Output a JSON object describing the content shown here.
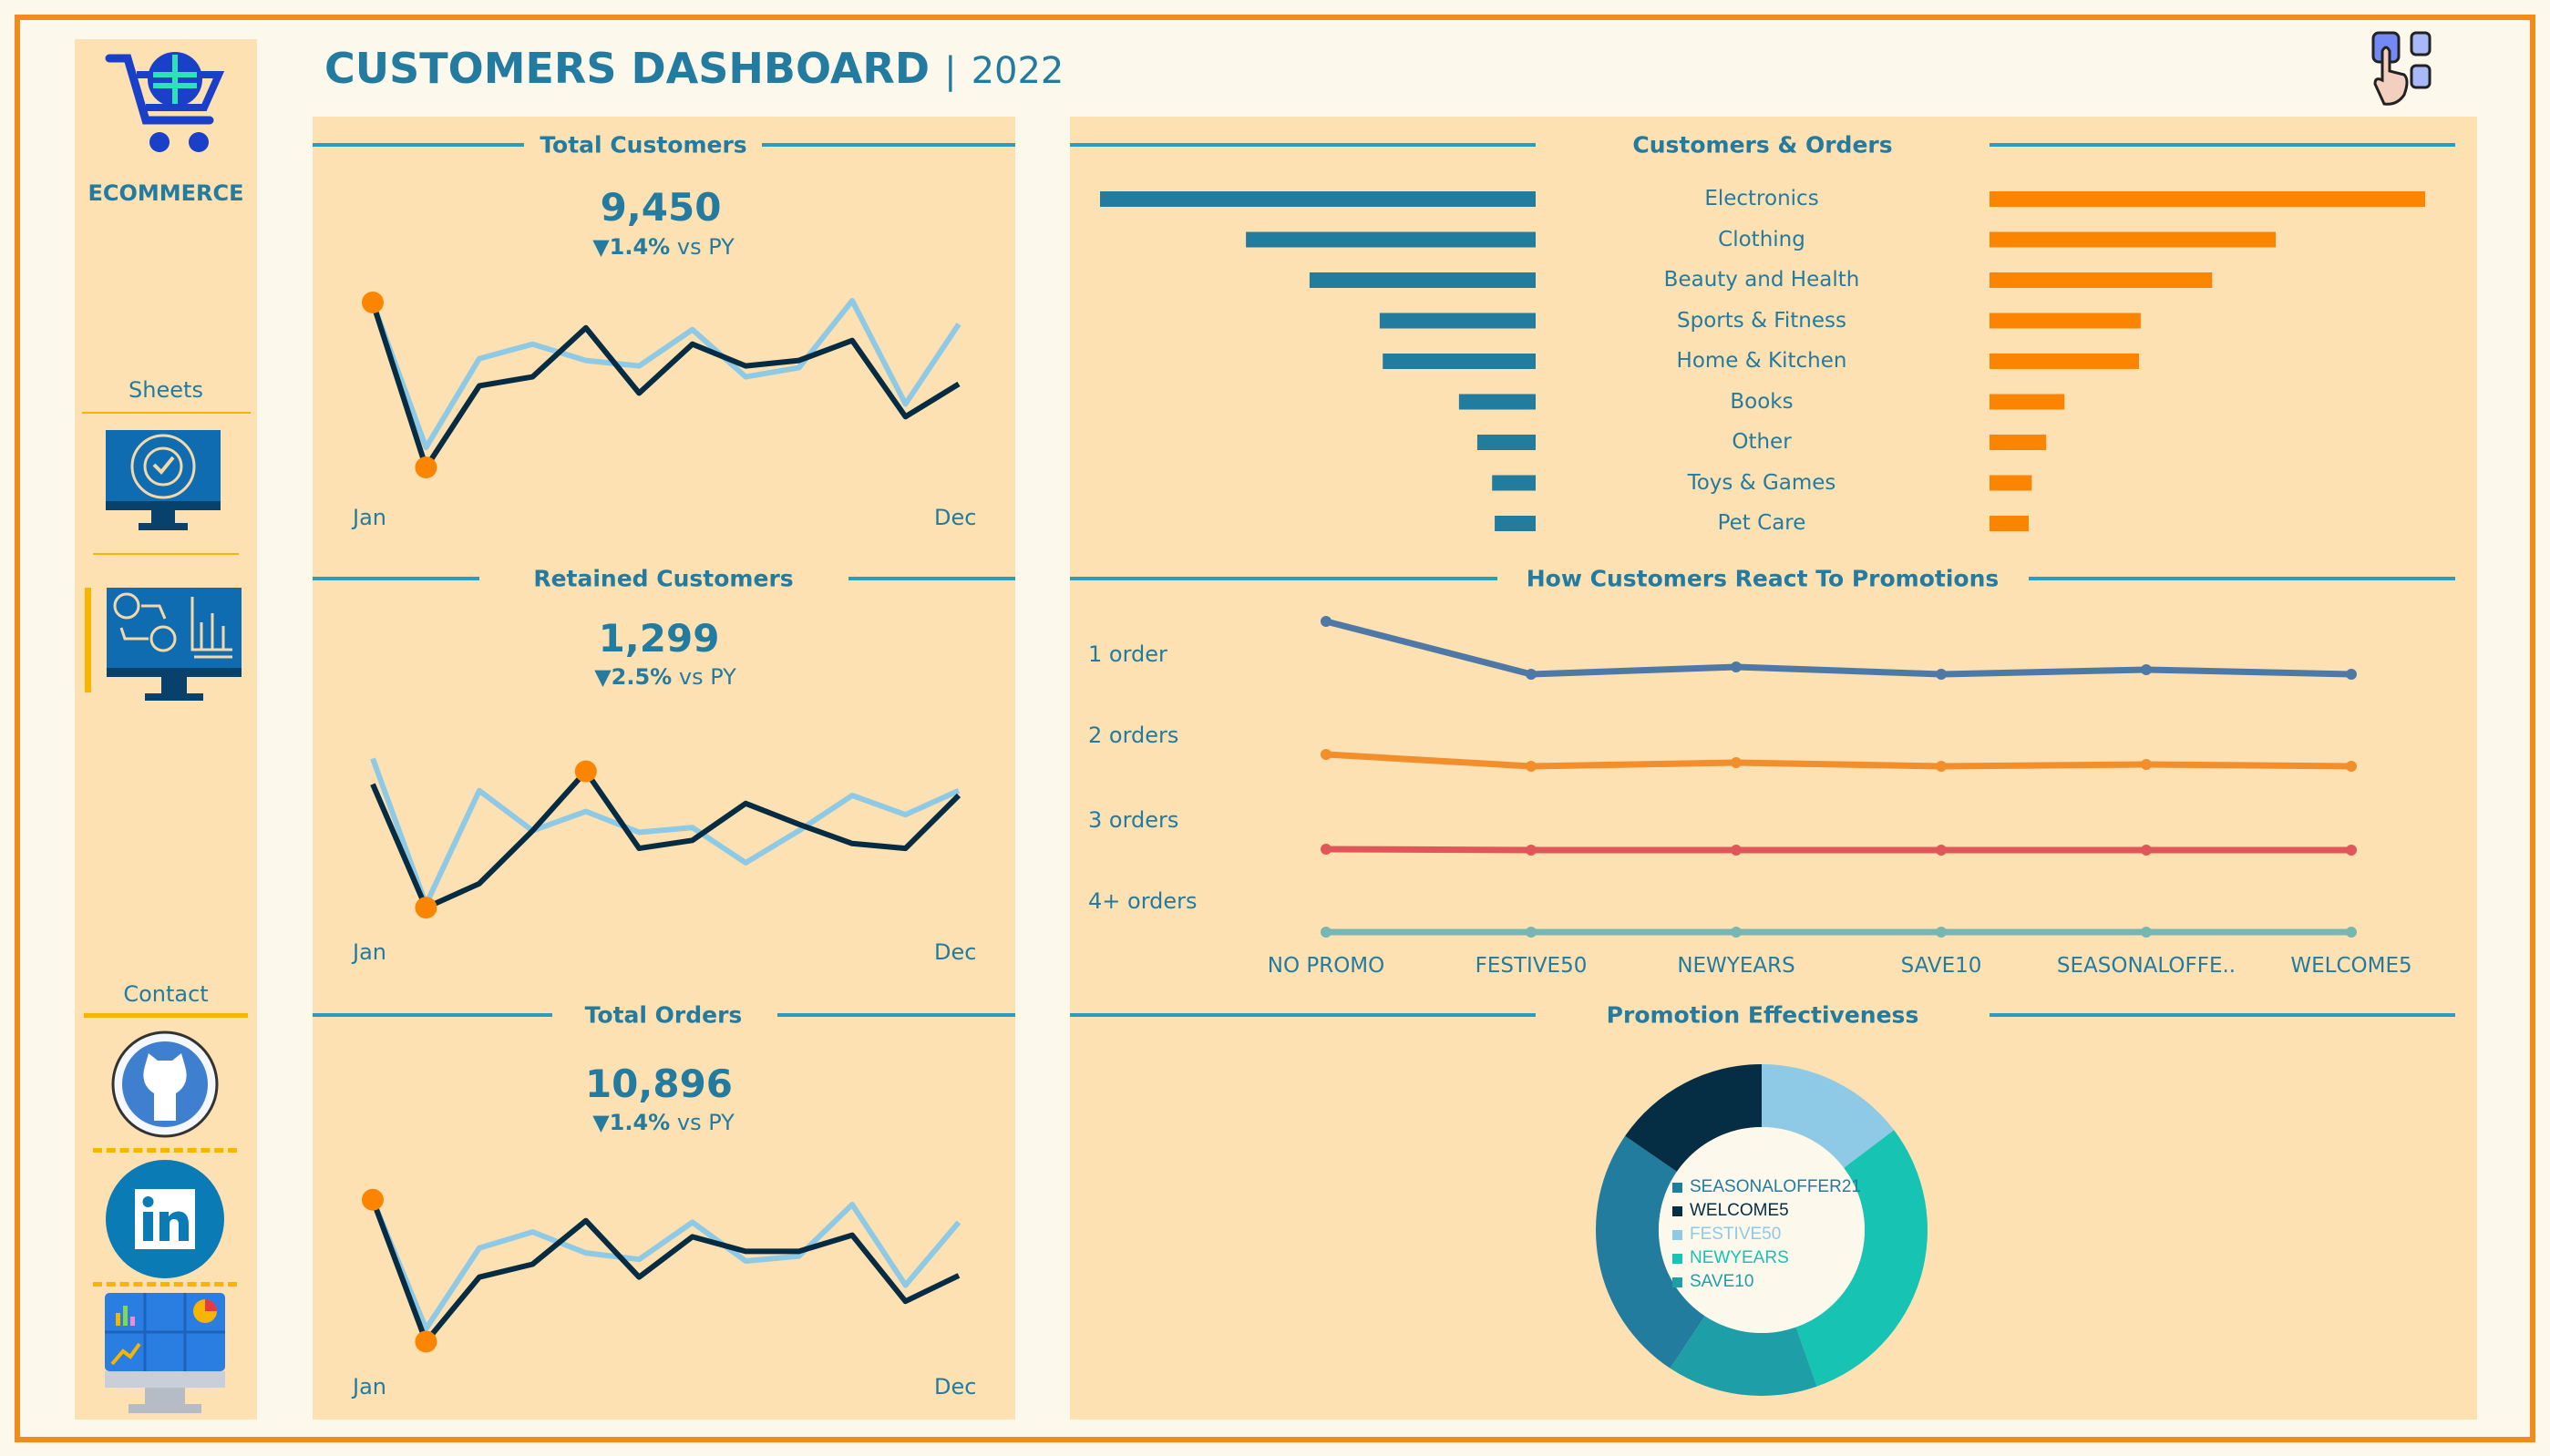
{
  "header": {
    "title": "CUSTOMERS DASHBOARD",
    "separator": "|",
    "year": "2022",
    "icon": "touch-select-icon"
  },
  "sidebar": {
    "brand": "ECOMMERCE",
    "brand_icon": "globe-cart-icon",
    "sheets_label": "Sheets",
    "sheets": [
      {
        "icon": "kpi-monitor-icon",
        "active": false
      },
      {
        "icon": "customer-analysis-monitor-icon",
        "active": true
      }
    ],
    "contact_label": "Contact",
    "contacts": [
      {
        "icon": "github-icon"
      },
      {
        "icon": "linkedin-icon"
      },
      {
        "icon": "dashboard-portfolio-icon"
      }
    ]
  },
  "colors": {
    "accent": "#237ba0",
    "line": "#2a9dbf",
    "current": "#062c43",
    "previous": "#8ecae6",
    "highlight": "#fb8500",
    "bar_customers": "#227c9d",
    "bar_orders": "#fb8500",
    "frame": "#f28a1c",
    "panel": "#fde1b2"
  },
  "kpis": [
    {
      "title": "Total Customers",
      "value": "9,450",
      "arrow": "▼",
      "delta": "1.4%",
      "vs": "vs PY",
      "start_label": "Jan",
      "end_label": "Dec",
      "current": [
        94,
        3,
        48,
        53,
        80,
        44,
        71,
        59,
        62,
        73,
        31,
        49
      ],
      "previous": [
        94,
        14,
        63,
        71,
        62,
        59,
        79,
        53,
        58,
        95,
        38,
        82
      ]
    },
    {
      "title": "Retained Customers",
      "value": "1,299",
      "arrow": "▼",
      "delta": "2.5%",
      "vs": "vs PY",
      "start_label": "Jan",
      "end_label": "Dec",
      "current": [
        82,
        5,
        20,
        53,
        90,
        42,
        47,
        70,
        57,
        45,
        42,
        75
      ],
      "previous": [
        98,
        7,
        78,
        53,
        65,
        52,
        55,
        33,
        53,
        75,
        63,
        78
      ]
    },
    {
      "title": "Total Orders",
      "value": "10,896",
      "arrow": "▼",
      "delta": "1.4%",
      "vs": "vs PY",
      "start_label": "Jan",
      "end_label": "Dec",
      "current": [
        90,
        2,
        42,
        50,
        77,
        42,
        67,
        58,
        58,
        68,
        27,
        43
      ],
      "previous": [
        90,
        10,
        60,
        70,
        57,
        53,
        76,
        52,
        55,
        87,
        37,
        76
      ]
    }
  ],
  "chart_data": [
    {
      "type": "bar",
      "title": "Customers & Orders",
      "categories": [
        "Electronics",
        "Clothing",
        "Beauty and Health",
        "Sports & Fitness",
        "Home & Kitchen",
        "Books",
        "Other",
        "Toys & Games",
        "Pet Care"
      ],
      "series": [
        {
          "side": "left",
          "color": "#227c9d",
          "values": [
            100,
            66.5,
            51.9,
            35.8,
            35.1,
            17.6,
            13.4,
            10,
            9.4
          ]
        },
        {
          "side": "right",
          "color": "#fb8500",
          "values": [
            100,
            65.7,
            51.1,
            34.7,
            34.3,
            17.2,
            13,
            9.7,
            9
          ]
        }
      ]
    },
    {
      "type": "line",
      "title": "How Customers React To Promotions",
      "categories": [
        "NO PROMO",
        "FESTIVE50",
        "NEWYEARS",
        "SAVE10",
        "SEASONALOFFE..",
        "WELCOME5"
      ],
      "series": [
        {
          "name": "1 order",
          "color": "#4e79a7",
          "values": [
            378,
            320,
            328,
            320,
            325,
            320
          ]
        },
        {
          "name": "2 orders",
          "color": "#f28e2b",
          "values": [
            232,
            219,
            223,
            219,
            221,
            219
          ]
        },
        {
          "name": "3 orders",
          "color": "#e15759",
          "values": [
            128,
            127,
            127,
            127,
            127,
            127
          ]
        },
        {
          "name": "4+ orders",
          "color": "#76b7b2",
          "values": [
            37,
            37,
            37,
            37,
            37,
            37
          ]
        }
      ]
    },
    {
      "type": "pie",
      "title": "Promotion Effectiveness",
      "legend": "center",
      "slices": [
        {
          "name": "FESTIVE50",
          "color": "#8ecae6",
          "value": 14.7
        },
        {
          "name": "NEWYEARS",
          "color": "#17c3b2",
          "value": 29.9
        },
        {
          "name": "SAVE10",
          "color": "#1e9fa8",
          "value": 14.7
        },
        {
          "name": "SEASONALOFFER21",
          "color": "#227c9d",
          "value": 25.3
        },
        {
          "name": "WELCOME5",
          "color": "#052e45",
          "value": 15.4
        }
      ],
      "legend_order": [
        "SEASONALOFFER21",
        "WELCOME5",
        "FESTIVE50",
        "NEWYEARS",
        "SAVE10"
      ]
    }
  ]
}
